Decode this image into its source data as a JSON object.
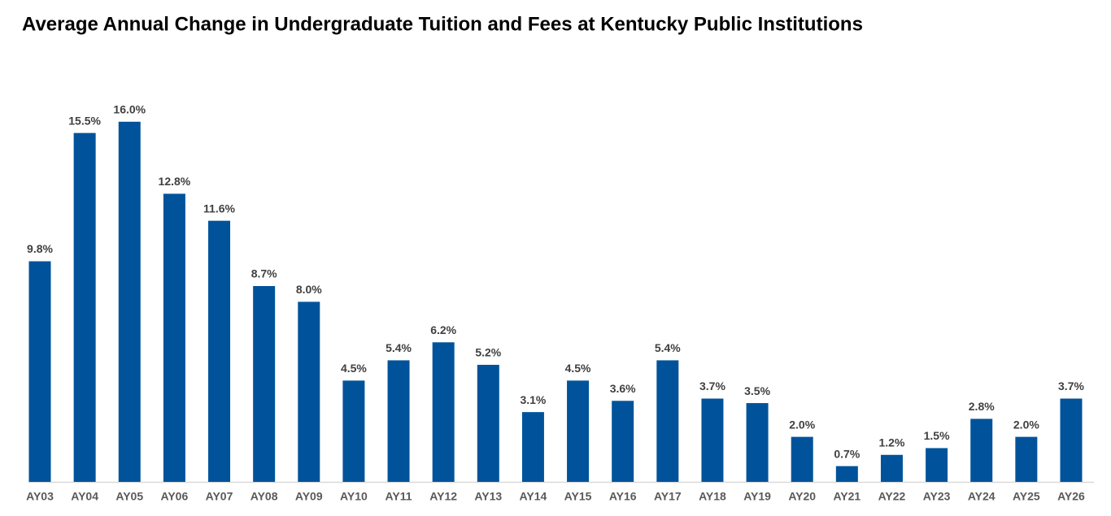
{
  "chart_data": {
    "type": "bar",
    "title": "Average Annual Change in Undergraduate Tuition and Fees at Kentucky Public Institutions",
    "categories": [
      "AY03",
      "AY04",
      "AY05",
      "AY06",
      "AY07",
      "AY08",
      "AY09",
      "AY10",
      "AY11",
      "AY12",
      "AY13",
      "AY14",
      "AY15",
      "AY16",
      "AY17",
      "AY18",
      "AY19",
      "AY20",
      "AY21",
      "AY22",
      "AY23",
      "AY24",
      "AY25",
      "AY26"
    ],
    "values": [
      9.8,
      15.5,
      16.0,
      12.8,
      11.6,
      8.7,
      8.0,
      4.5,
      5.4,
      6.2,
      5.2,
      3.1,
      4.5,
      3.6,
      5.4,
      3.7,
      3.5,
      2.0,
      0.7,
      1.2,
      1.5,
      2.8,
      2.0,
      3.7
    ],
    "value_labels": [
      "9.8%",
      "15.5%",
      "16.0%",
      "12.8%",
      "11.6%",
      "8.7%",
      "8.0%",
      "4.5%",
      "5.4%",
      "6.2%",
      "5.2%",
      "3.1%",
      "4.5%",
      "3.6%",
      "5.4%",
      "3.7%",
      "3.5%",
      "2.0%",
      "0.7%",
      "1.2%",
      "1.5%",
      "2.8%",
      "2.0%",
      "3.7%"
    ],
    "color": "#00539b"
  }
}
